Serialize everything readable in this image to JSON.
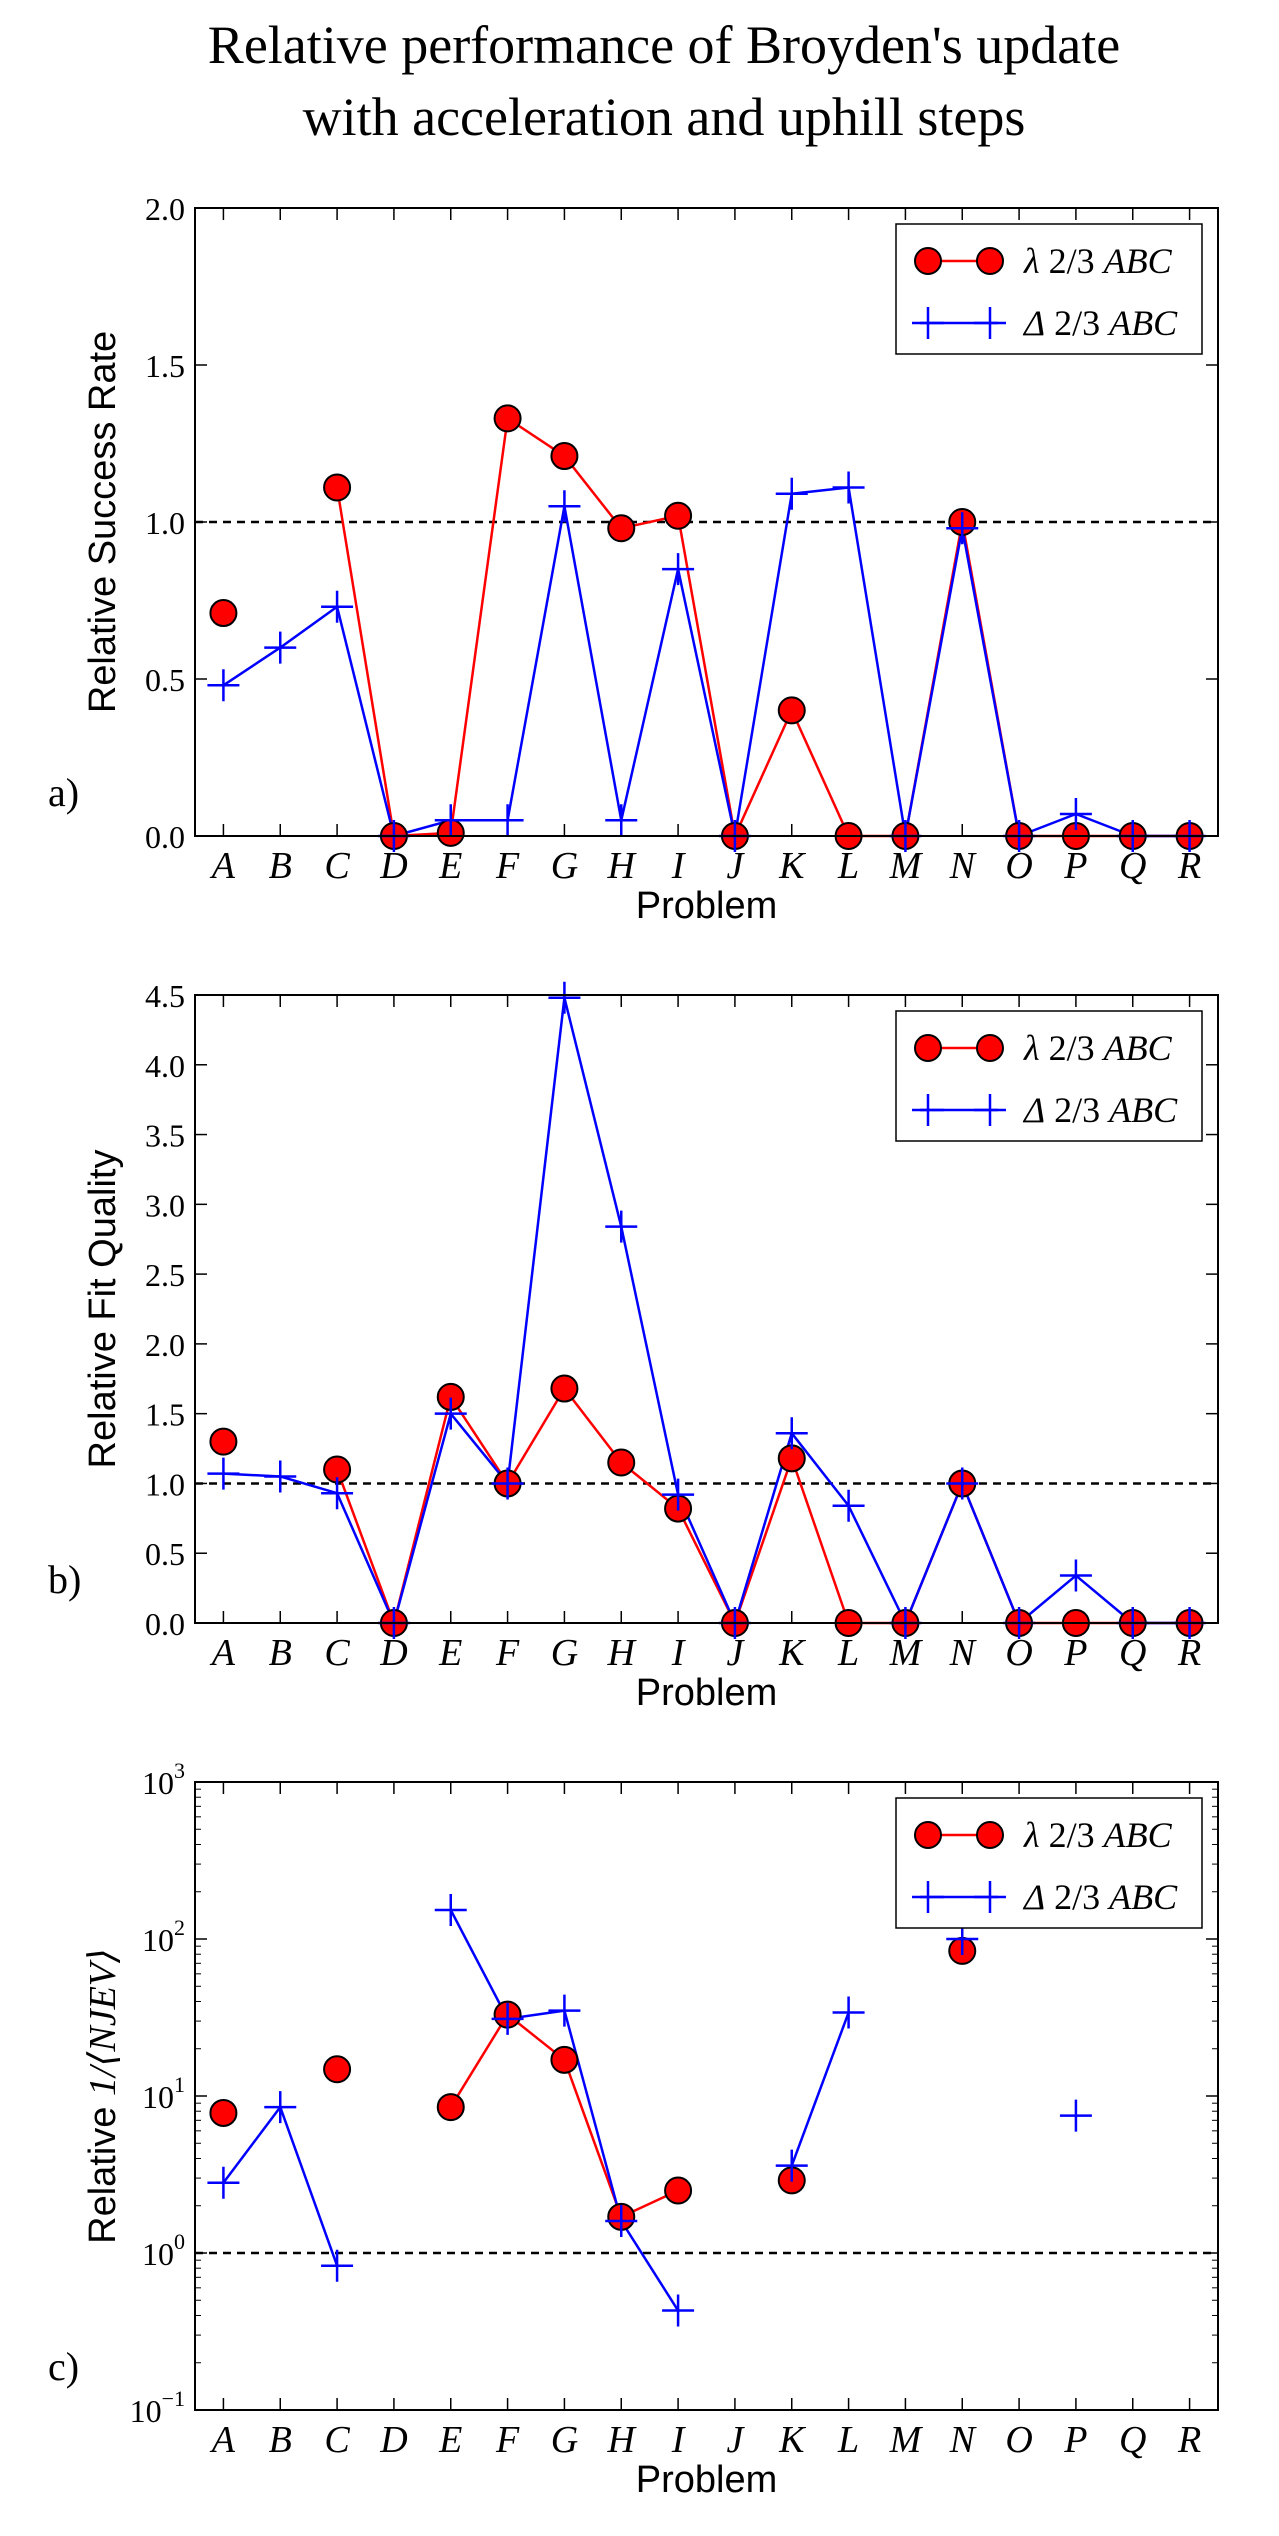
{
  "title_lines": [
    "Relative performance of Broyden's update",
    "with acceleration and uphill steps"
  ],
  "colors": {
    "lambda": "#ff0000",
    "lambda_edge": "#000000",
    "delta": "#0000ff",
    "reference": "#000000"
  },
  "chart_data": [
    {
      "type": "line",
      "panel_label": "a)",
      "title": "",
      "xlabel": "Problem",
      "ylabel": "Relative Success Rate",
      "yscale": "linear",
      "ylim": [
        0,
        2.0
      ],
      "yticks": [
        0.0,
        0.5,
        1.0,
        1.5,
        2.0
      ],
      "ytick_labels": [
        "0.0",
        "0.5",
        "1.0",
        "1.5",
        "2.0"
      ],
      "reference_line": 1.0,
      "legend_position": "top-right",
      "categories": [
        "A",
        "B",
        "C",
        "D",
        "E",
        "F",
        "G",
        "H",
        "I",
        "J",
        "K",
        "L",
        "M",
        "N",
        "O",
        "P",
        "Q",
        "R"
      ],
      "series": [
        {
          "name": "λ 2/3 ABC",
          "name_symbol": "λ",
          "name_fraction": "2/3",
          "name_tag": "ABC",
          "marker": "circle",
          "values": [
            0.71,
            null,
            1.11,
            0.0,
            0.01,
            1.33,
            1.21,
            0.98,
            1.02,
            0.0,
            0.4,
            0.0,
            0.0,
            1.0,
            0.0,
            0.0,
            0.0,
            0.0
          ]
        },
        {
          "name": "Δ 2/3 ABC",
          "name_symbol": "Δ",
          "name_fraction": "2/3",
          "name_tag": "ABC",
          "marker": "plus",
          "values": [
            0.48,
            0.6,
            0.73,
            0.0,
            0.05,
            0.05,
            1.05,
            0.05,
            0.85,
            0.0,
            1.09,
            1.11,
            0.0,
            0.98,
            0.0,
            0.07,
            0.0,
            0.0
          ]
        }
      ]
    },
    {
      "type": "line",
      "panel_label": "b)",
      "title": "",
      "xlabel": "Problem",
      "ylabel": "Relative Fit Quality",
      "yscale": "linear",
      "ylim": [
        0,
        4.5
      ],
      "yticks": [
        0.0,
        0.5,
        1.0,
        1.5,
        2.0,
        2.5,
        3.0,
        3.5,
        4.0,
        4.5
      ],
      "ytick_labels": [
        "0.0",
        "0.5",
        "1.0",
        "1.5",
        "2.0",
        "2.5",
        "3.0",
        "3.5",
        "4.0",
        "4.5"
      ],
      "reference_line": 1.0,
      "legend_position": "top-right",
      "categories": [
        "A",
        "B",
        "C",
        "D",
        "E",
        "F",
        "G",
        "H",
        "I",
        "J",
        "K",
        "L",
        "M",
        "N",
        "O",
        "P",
        "Q",
        "R"
      ],
      "series": [
        {
          "name": "λ 2/3 ABC",
          "name_symbol": "λ",
          "name_fraction": "2/3",
          "name_tag": "ABC",
          "marker": "circle",
          "values": [
            1.3,
            null,
            1.1,
            0.0,
            1.62,
            1.0,
            1.68,
            1.15,
            0.82,
            0.0,
            1.18,
            0.0,
            0.0,
            1.0,
            0.0,
            0.0,
            0.0,
            0.0
          ]
        },
        {
          "name": "Δ 2/3 ABC",
          "name_symbol": "Δ",
          "name_fraction": "2/3",
          "name_tag": "ABC",
          "marker": "plus",
          "values": [
            1.07,
            1.05,
            0.93,
            0.0,
            1.5,
            1.0,
            4.48,
            2.84,
            0.92,
            0.0,
            1.36,
            0.84,
            0.0,
            1.0,
            0.0,
            0.34,
            0.0,
            0.0
          ]
        }
      ]
    },
    {
      "type": "line",
      "panel_label": "c)",
      "title": "",
      "xlabel": "Problem",
      "ylabel": "Relative 1/⟨NJEV⟩",
      "ylabel_prefix": "Relative ",
      "ylabel_math": "1/⟨NJEV⟩",
      "yscale": "log",
      "ylim": [
        0.1,
        1000
      ],
      "yticks": [
        0.1,
        1,
        10,
        100,
        1000
      ],
      "ytick_labels": [
        {
          "base": "10",
          "exp": "−1"
        },
        {
          "base": "10",
          "exp": "0"
        },
        {
          "base": "10",
          "exp": "1"
        },
        {
          "base": "10",
          "exp": "2"
        },
        {
          "base": "10",
          "exp": "3"
        }
      ],
      "reference_line": 1.0,
      "legend_position": "top-right",
      "categories": [
        "A",
        "B",
        "C",
        "D",
        "E",
        "F",
        "G",
        "H",
        "I",
        "J",
        "K",
        "L",
        "M",
        "N",
        "O",
        "P",
        "Q",
        "R"
      ],
      "series": [
        {
          "name": "λ 2/3 ABC",
          "name_symbol": "λ",
          "name_fraction": "2/3",
          "name_tag": "ABC",
          "marker": "circle",
          "values": [
            7.8,
            null,
            14.8,
            null,
            8.5,
            33,
            17,
            1.7,
            2.5,
            null,
            2.9,
            null,
            null,
            84,
            null,
            null,
            null,
            null
          ]
        },
        {
          "name": "Δ 2/3 ABC",
          "name_symbol": "Δ",
          "name_fraction": "2/3",
          "name_tag": "ABC",
          "marker": "plus",
          "values": [
            2.8,
            8.5,
            0.83,
            null,
            153,
            31,
            35,
            1.6,
            0.43,
            null,
            3.6,
            34,
            null,
            100,
            null,
            7.5,
            null,
            null
          ]
        }
      ]
    }
  ]
}
